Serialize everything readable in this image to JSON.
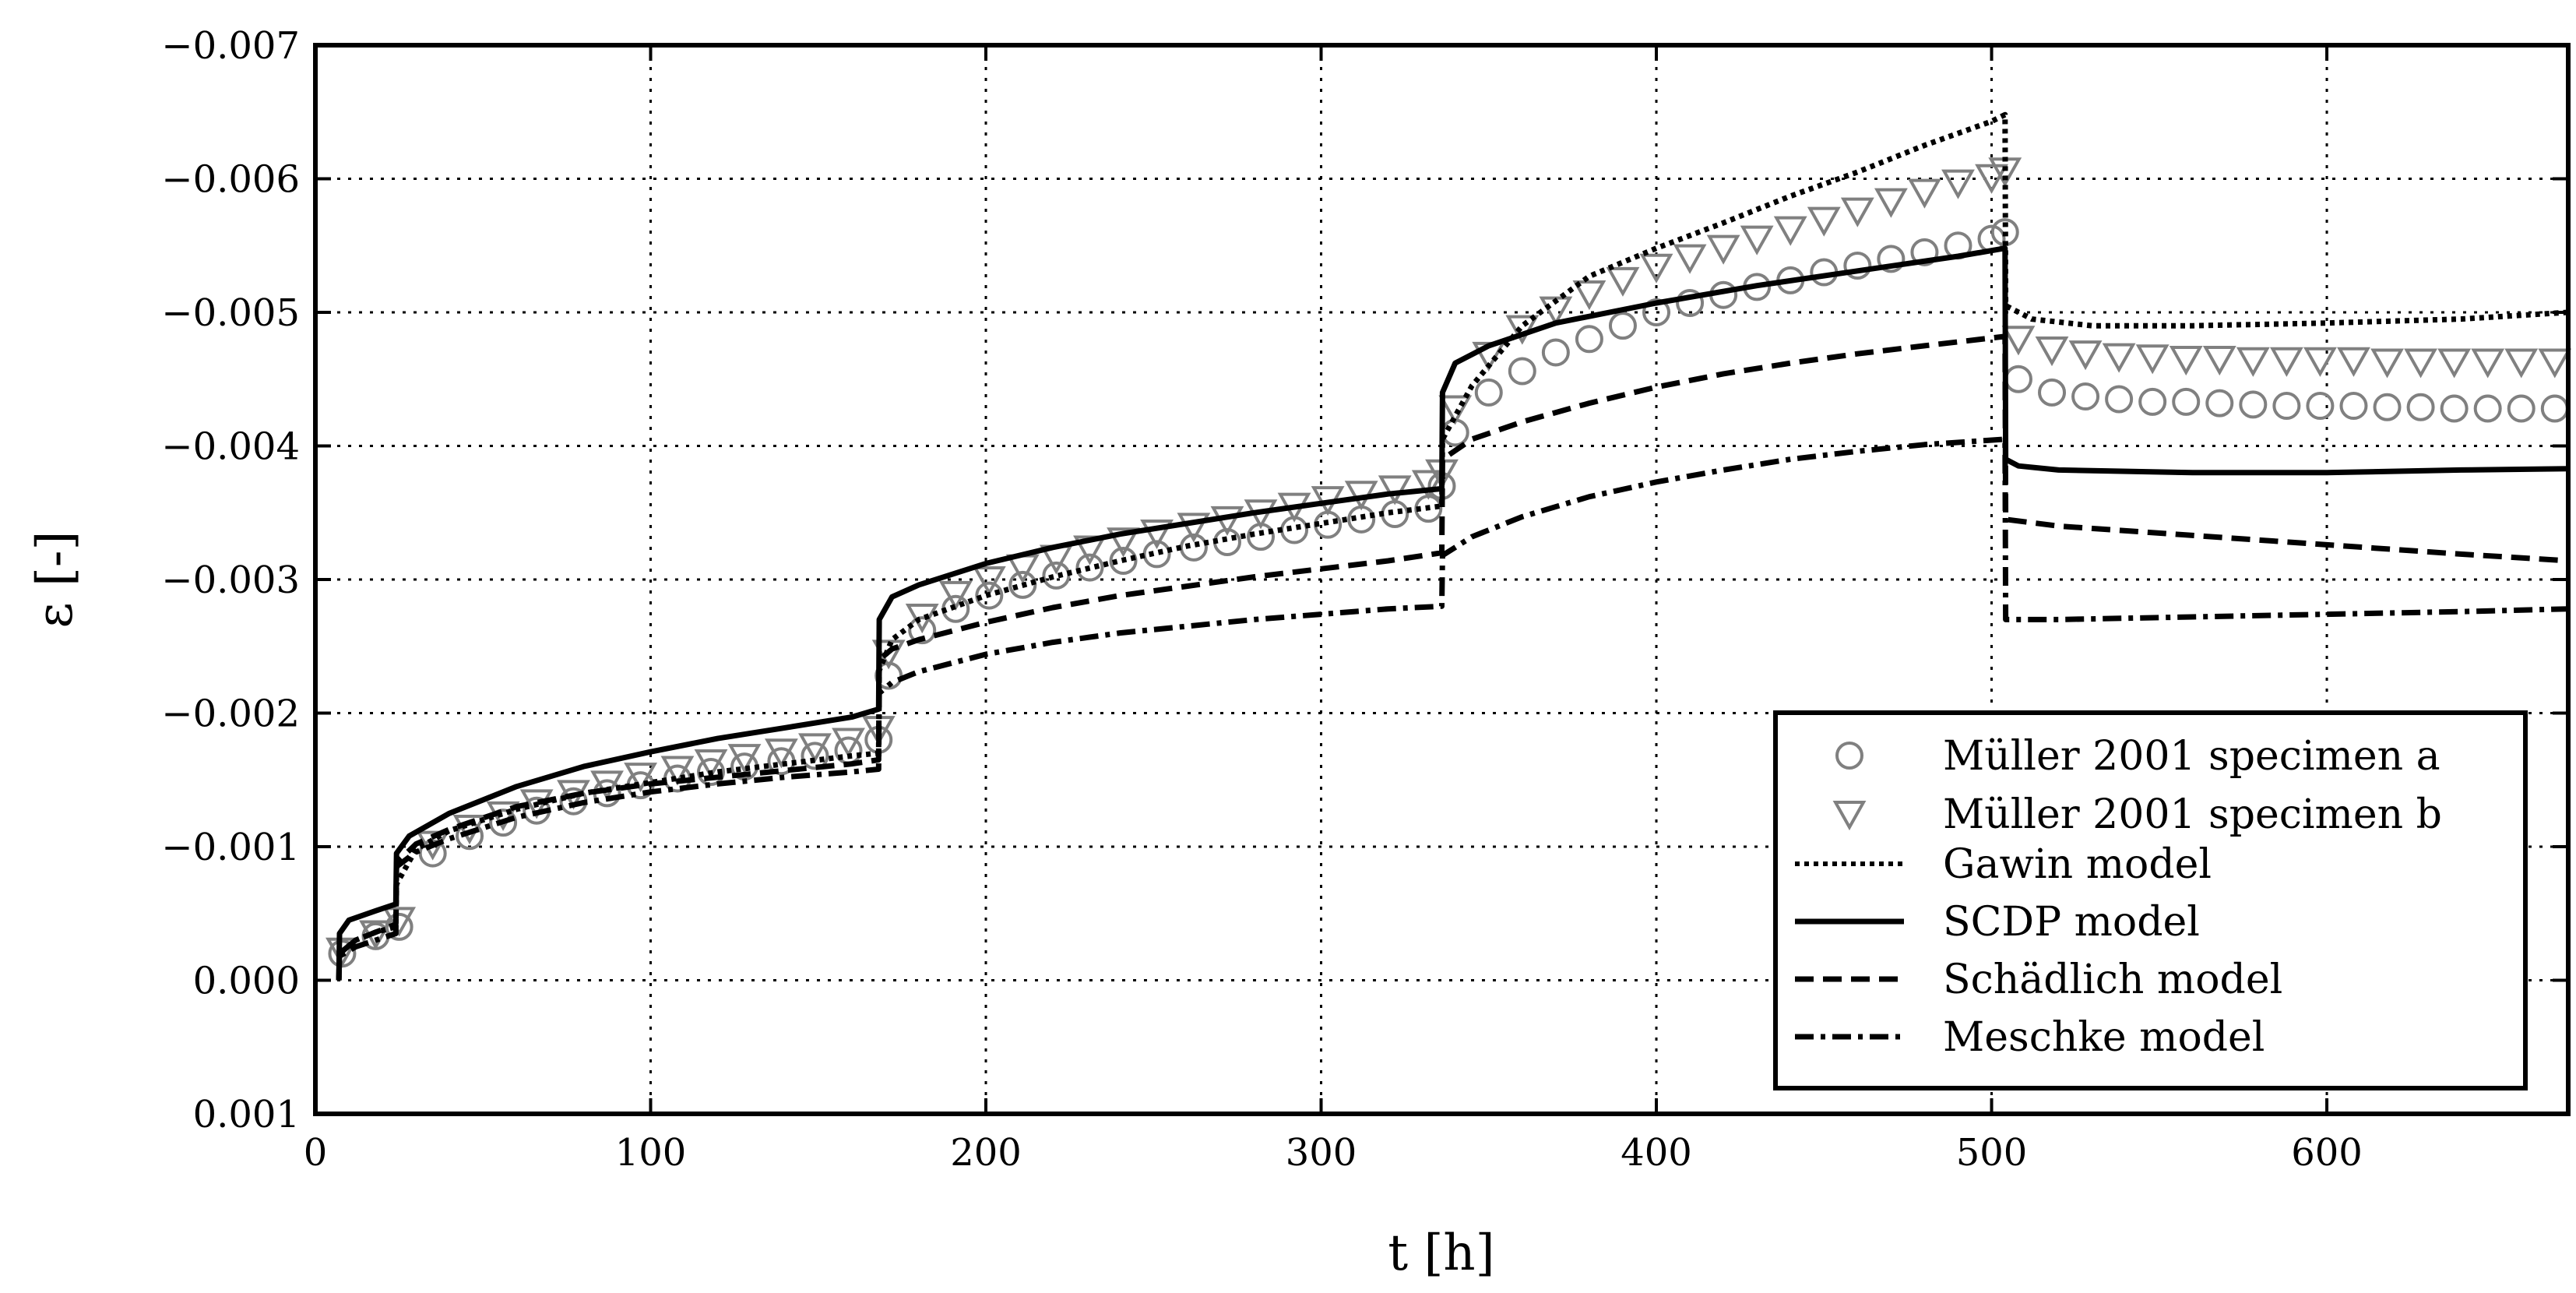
{
  "chart_data": {
    "type": "line",
    "xlabel": "t [h]",
    "ylabel": "ε [-]",
    "xlim": [
      0,
      672
    ],
    "ylim": [
      0.001,
      -0.007
    ],
    "y_inverted": true,
    "grid": true,
    "legend_position": "lower-right",
    "xticks": [
      0,
      100,
      200,
      300,
      400,
      500,
      600
    ],
    "xtick_labels": [
      "0",
      "100",
      "200",
      "300",
      "400",
      "500",
      "600"
    ],
    "yticks": [
      -0.007,
      -0.006,
      -0.005,
      -0.004,
      -0.003,
      -0.002,
      -0.001,
      0.0,
      0.001
    ],
    "ytick_labels": [
      "−0.007",
      "−0.006",
      "−0.005",
      "−0.004",
      "−0.003",
      "−0.002",
      "−0.001",
      "0.000",
      "0.001"
    ],
    "series": [
      {
        "name": "Müller 2001 specimen a",
        "style": "marker-circle",
        "color": "#808080",
        "x": [
          8,
          18,
          25,
          35,
          46,
          56,
          66,
          77,
          87,
          97,
          108,
          118,
          128,
          139,
          149,
          159,
          168,
          171,
          181,
          191,
          201,
          211,
          221,
          231,
          241,
          251,
          262,
          272,
          282,
          292,
          302,
          312,
          322,
          332,
          336,
          340,
          350,
          360,
          370,
          380,
          390,
          400,
          410,
          420,
          430,
          440,
          450,
          460,
          470,
          480,
          490,
          500,
          504,
          508,
          518,
          528,
          538,
          548,
          558,
          568,
          578,
          588,
          598,
          608,
          618,
          628,
          638,
          648,
          658,
          668
        ],
        "y": [
          -0.0002,
          -0.00033,
          -0.0004,
          -0.00095,
          -0.00108,
          -0.00118,
          -0.00127,
          -0.00134,
          -0.0014,
          -0.00146,
          -0.00151,
          -0.00156,
          -0.0016,
          -0.00164,
          -0.00168,
          -0.00172,
          -0.0018,
          -0.00228,
          -0.00262,
          -0.00278,
          -0.00288,
          -0.00296,
          -0.00303,
          -0.00309,
          -0.00314,
          -0.00319,
          -0.00324,
          -0.00328,
          -0.00332,
          -0.00337,
          -0.00341,
          -0.00345,
          -0.00349,
          -0.00353,
          -0.0037,
          -0.0041,
          -0.0044,
          -0.00456,
          -0.0047,
          -0.0048,
          -0.0049,
          -0.005,
          -0.00507,
          -0.00513,
          -0.00519,
          -0.00524,
          -0.0053,
          -0.00535,
          -0.0054,
          -0.00545,
          -0.0055,
          -0.00555,
          -0.0056,
          -0.0045,
          -0.0044,
          -0.00437,
          -0.00435,
          -0.00433,
          -0.00433,
          -0.00432,
          -0.00431,
          -0.0043,
          -0.0043,
          -0.0043,
          -0.00429,
          -0.00429,
          -0.00428,
          -0.00428,
          -0.00428,
          -0.00428
        ]
      },
      {
        "name": "Müller 2001 specimen b",
        "style": "marker-triangle-down",
        "color": "#808080",
        "x": [
          8,
          18,
          25,
          35,
          46,
          56,
          66,
          77,
          87,
          97,
          108,
          118,
          128,
          139,
          149,
          159,
          168,
          171,
          181,
          191,
          201,
          211,
          221,
          231,
          241,
          251,
          262,
          272,
          282,
          292,
          302,
          312,
          322,
          332,
          336,
          340,
          350,
          360,
          370,
          380,
          390,
          400,
          410,
          420,
          430,
          440,
          450,
          460,
          470,
          480,
          490,
          500,
          504,
          508,
          518,
          528,
          538,
          548,
          558,
          568,
          578,
          588,
          598,
          608,
          618,
          628,
          638,
          648,
          658,
          668
        ],
        "y": [
          -0.00022,
          -0.00035,
          -0.00045,
          -0.00102,
          -0.00114,
          -0.00124,
          -0.00133,
          -0.0014,
          -0.00147,
          -0.00153,
          -0.00158,
          -0.00163,
          -0.00167,
          -0.00171,
          -0.00175,
          -0.00179,
          -0.00188,
          -0.00245,
          -0.00272,
          -0.00289,
          -0.003,
          -0.00309,
          -0.00316,
          -0.00323,
          -0.00329,
          -0.00335,
          -0.0034,
          -0.00345,
          -0.0035,
          -0.00355,
          -0.0036,
          -0.00364,
          -0.00368,
          -0.00372,
          -0.0038,
          -0.00428,
          -0.00468,
          -0.00488,
          -0.00502,
          -0.00514,
          -0.00524,
          -0.00534,
          -0.00541,
          -0.00548,
          -0.00555,
          -0.00562,
          -0.00569,
          -0.00576,
          -0.00583,
          -0.0059,
          -0.00597,
          -0.00601,
          -0.00606,
          -0.0048,
          -0.00472,
          -0.00469,
          -0.00467,
          -0.00466,
          -0.00465,
          -0.00465,
          -0.00464,
          -0.00464,
          -0.00464,
          -0.00464,
          -0.00463,
          -0.00463,
          -0.00463,
          -0.00463,
          -0.00463,
          -0.00463
        ]
      },
      {
        "name": "Gawin model",
        "style": "dotted",
        "color": "#000000",
        "x": [
          7,
          7.2,
          12,
          18,
          24,
          24.2,
          30,
          40,
          60,
          80,
          100,
          120,
          140,
          160,
          168,
          168.2,
          172,
          180,
          200,
          220,
          240,
          260,
          280,
          300,
          320,
          336,
          336.2,
          345,
          360,
          380,
          400,
          420,
          440,
          460,
          480,
          500,
          504,
          504.2,
          512,
          530,
          560,
          600,
          640,
          672
        ],
        "y": [
          0.0,
          -0.0002,
          -0.0003,
          -0.00036,
          -0.0004,
          -0.00072,
          -0.00098,
          -0.00112,
          -0.00128,
          -0.0014,
          -0.00148,
          -0.00156,
          -0.00162,
          -0.00168,
          -0.0017,
          -0.00232,
          -0.00255,
          -0.0027,
          -0.00288,
          -0.00302,
          -0.00314,
          -0.00325,
          -0.00334,
          -0.00342,
          -0.0035,
          -0.00355,
          -0.00405,
          -0.00445,
          -0.0049,
          -0.00527,
          -0.00548,
          -0.00567,
          -0.00587,
          -0.00605,
          -0.00625,
          -0.00643,
          -0.00648,
          -0.00505,
          -0.00495,
          -0.0049,
          -0.0049,
          -0.00492,
          -0.00495,
          -0.005
        ]
      },
      {
        "name": "SCDP model",
        "style": "solid",
        "color": "#000000",
        "x": [
          7,
          7.2,
          10,
          18,
          24,
          24.2,
          28,
          40,
          60,
          80,
          100,
          120,
          140,
          160,
          168,
          168.2,
          172,
          180,
          200,
          220,
          240,
          260,
          280,
          300,
          320,
          336,
          336.2,
          340,
          350,
          370,
          400,
          430,
          460,
          490,
          504,
          504.2,
          508,
          520,
          560,
          600,
          640,
          672
        ],
        "y": [
          0.0,
          -0.00035,
          -0.00045,
          -0.00052,
          -0.00057,
          -0.00095,
          -0.00108,
          -0.00125,
          -0.00145,
          -0.0016,
          -0.00171,
          -0.00181,
          -0.00189,
          -0.00197,
          -0.00203,
          -0.0027,
          -0.00287,
          -0.00296,
          -0.00312,
          -0.00324,
          -0.00334,
          -0.00342,
          -0.0035,
          -0.00357,
          -0.00364,
          -0.00368,
          -0.0044,
          -0.00462,
          -0.00475,
          -0.00492,
          -0.00507,
          -0.0052,
          -0.00531,
          -0.00542,
          -0.00548,
          -0.0039,
          -0.00385,
          -0.00382,
          -0.0038,
          -0.0038,
          -0.00382,
          -0.00383
        ]
      },
      {
        "name": "Schädlich model",
        "style": "dashed",
        "color": "#000000",
        "x": [
          7,
          7.2,
          12,
          18,
          24,
          24.2,
          30,
          40,
          60,
          80,
          100,
          120,
          140,
          160,
          168,
          168.2,
          172,
          180,
          200,
          220,
          240,
          260,
          280,
          300,
          320,
          336,
          336.2,
          345,
          360,
          380,
          400,
          420,
          440,
          460,
          480,
          504,
          504.2,
          520,
          560,
          600,
          640,
          672
        ],
        "y": [
          0.0,
          -0.0002,
          -0.0003,
          -0.00036,
          -0.00042,
          -0.00088,
          -0.00102,
          -0.00113,
          -0.0013,
          -0.0014,
          -0.00147,
          -0.00152,
          -0.00157,
          -0.00162,
          -0.00165,
          -0.0024,
          -0.00248,
          -0.00255,
          -0.00268,
          -0.00279,
          -0.00288,
          -0.00295,
          -0.00302,
          -0.00308,
          -0.00314,
          -0.0032,
          -0.0039,
          -0.00405,
          -0.00418,
          -0.00432,
          -0.00444,
          -0.00454,
          -0.00462,
          -0.00469,
          -0.00475,
          -0.00482,
          -0.00345,
          -0.0034,
          -0.00333,
          -0.00326,
          -0.00319,
          -0.00314
        ]
      },
      {
        "name": "Meschke model",
        "style": "dashdot",
        "color": "#000000",
        "x": [
          7,
          7.2,
          12,
          18,
          24,
          24.2,
          30,
          40,
          60,
          80,
          100,
          120,
          140,
          160,
          168,
          168.2,
          172,
          180,
          200,
          220,
          240,
          260,
          280,
          300,
          320,
          336,
          336.2,
          345,
          360,
          380,
          400,
          420,
          440,
          460,
          480,
          504,
          504.2,
          520,
          560,
          600,
          640,
          672
        ],
        "y": [
          0.0,
          -0.00018,
          -0.00025,
          -0.0003,
          -0.00035,
          -0.00085,
          -0.00096,
          -0.00106,
          -0.00122,
          -0.00133,
          -0.00141,
          -0.00147,
          -0.00152,
          -0.00156,
          -0.00158,
          -0.00215,
          -0.00223,
          -0.00231,
          -0.00244,
          -0.00253,
          -0.0026,
          -0.00265,
          -0.0027,
          -0.00274,
          -0.00278,
          -0.0028,
          -0.00318,
          -0.00332,
          -0.00347,
          -0.00362,
          -0.00373,
          -0.00382,
          -0.0039,
          -0.00396,
          -0.00401,
          -0.00405,
          -0.0027,
          -0.0027,
          -0.00272,
          -0.00274,
          -0.00276,
          -0.00278
        ]
      }
    ]
  }
}
